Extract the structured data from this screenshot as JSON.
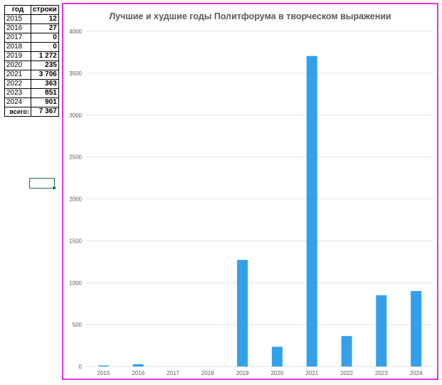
{
  "table": {
    "header": {
      "year": "год",
      "rows": "строки"
    },
    "rows": [
      {
        "year": "2015",
        "rows": "12"
      },
      {
        "year": "2016",
        "rows": "27"
      },
      {
        "year": "2017",
        "rows": "0"
      },
      {
        "year": "2018",
        "rows": "0"
      },
      {
        "year": "2019",
        "rows": "1 272"
      },
      {
        "year": "2020",
        "rows": "235"
      },
      {
        "year": "2021",
        "rows": "3 706"
      },
      {
        "year": "2022",
        "rows": "363"
      },
      {
        "year": "2023",
        "rows": "851"
      },
      {
        "year": "2024",
        "rows": "901"
      }
    ],
    "total": {
      "label": "всего:",
      "value": "7 367"
    }
  },
  "chart_data": {
    "type": "bar",
    "title": "Лучшие и худшие годы Политфорума в творческом выражении",
    "categories": [
      "2015",
      "2016",
      "2017",
      "2018",
      "2019",
      "2020",
      "2021",
      "2022",
      "2023",
      "2024"
    ],
    "values": [
      12,
      27,
      0,
      0,
      1272,
      235,
      3706,
      363,
      851,
      901
    ],
    "ylim": [
      0,
      4000
    ],
    "yticks": [
      0,
      500,
      1000,
      1500,
      2000,
      2500,
      3000,
      3500,
      4000
    ],
    "xlabel": "",
    "ylabel": "",
    "grid": true,
    "legend": "none",
    "bar_color": "#32a0ea",
    "grid_color": "#d9d9d9"
  },
  "colors": {
    "chart_border": "#e234e3",
    "selection": "#217346"
  }
}
